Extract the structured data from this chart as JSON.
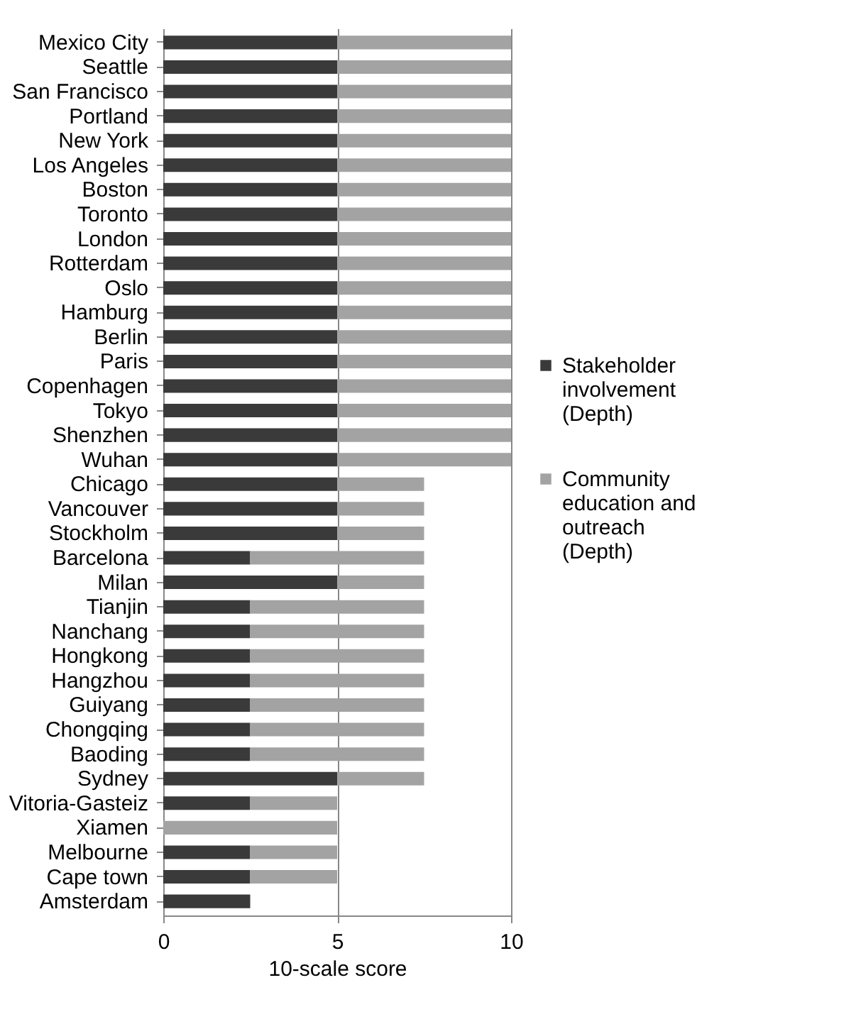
{
  "chart_data": {
    "type": "bar",
    "orientation": "horizontal",
    "stacked": true,
    "categories": [
      "Mexico City",
      "Seattle",
      "San Francisco",
      "Portland",
      "New York",
      "Los Angeles",
      "Boston",
      "Toronto",
      "London",
      "Rotterdam",
      "Oslo",
      "Hamburg",
      "Berlin",
      "Paris",
      "Copenhagen",
      "Tokyo",
      "Shenzhen",
      "Wuhan",
      "Chicago",
      "Vancouver",
      "Stockholm",
      "Barcelona",
      "Milan",
      "Tianjin",
      "Nanchang",
      "Hongkong",
      "Hangzhou",
      "Guiyang",
      "Chongqing",
      "Baoding",
      "Sydney",
      "Vitoria-Gasteiz",
      "Xiamen",
      "Melbourne",
      "Cape town",
      "Amsterdam"
    ],
    "series": [
      {
        "name": "Stakeholder involvement (Depth)",
        "color": "#3a3a3a",
        "values": [
          5,
          5,
          5,
          5,
          5,
          5,
          5,
          5,
          5,
          5,
          5,
          5,
          5,
          5,
          5,
          5,
          5,
          5,
          5,
          5,
          5,
          2.5,
          5,
          2.5,
          2.5,
          2.5,
          2.5,
          2.5,
          2.5,
          2.5,
          5,
          2.5,
          0,
          2.5,
          2.5,
          2.5
        ]
      },
      {
        "name": "Community education and outreach (Depth)",
        "color": "#a3a3a3",
        "values": [
          5,
          5,
          5,
          5,
          5,
          5,
          5,
          5,
          5,
          5,
          5,
          5,
          5,
          5,
          5,
          5,
          5,
          5,
          2.5,
          2.5,
          2.5,
          5,
          2.5,
          5,
          5,
          5,
          5,
          5,
          5,
          5,
          2.5,
          2.5,
          5,
          2.5,
          2.5,
          0
        ]
      }
    ],
    "xlim": [
      0,
      10
    ],
    "xticks": [
      0,
      5,
      10
    ],
    "xlabel": "10-scale score",
    "grid": "x",
    "legend": "right"
  }
}
